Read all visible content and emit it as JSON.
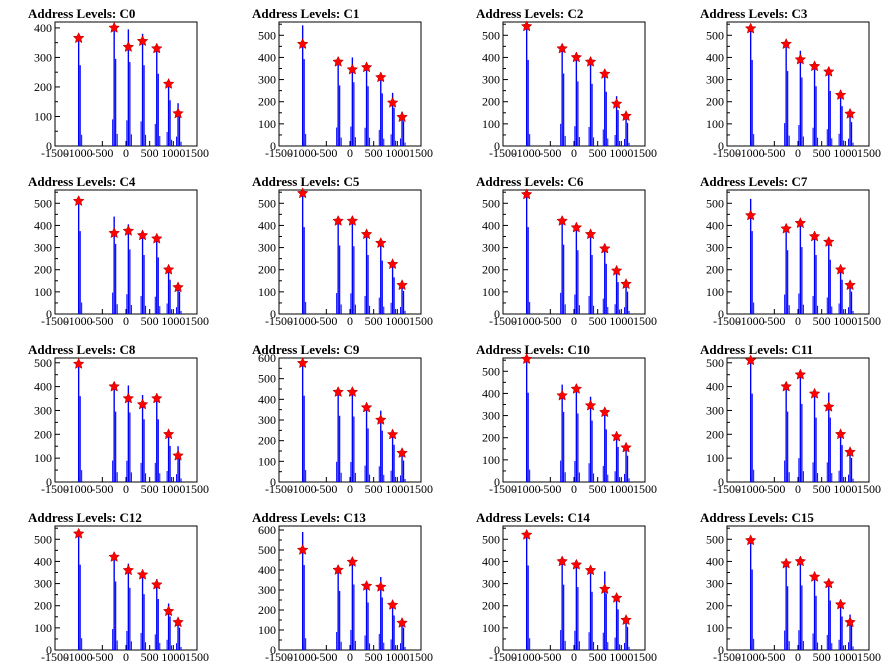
{
  "chart_data": [
    {
      "type": "bar",
      "title": "Address Levels: C0",
      "xlim": [
        -1500,
        1500
      ],
      "ylim": [
        0,
        420
      ],
      "yticks": [
        0,
        100,
        200,
        300,
        400
      ],
      "xticks": [
        -1500,
        -1000,
        -500,
        0,
        500,
        1000,
        1500
      ],
      "peaks": [
        {
          "x": -1000,
          "y": 380,
          "marker": 365
        },
        {
          "x": -250,
          "y": 410,
          "marker": 400
        },
        {
          "x": 50,
          "y": 395,
          "marker": 335
        },
        {
          "x": 350,
          "y": 380,
          "marker": 355
        },
        {
          "x": 650,
          "y": 340,
          "marker": 330
        },
        {
          "x": 900,
          "y": 215,
          "marker": 210
        },
        {
          "x": 1100,
          "y": 145,
          "marker": 110
        }
      ]
    },
    {
      "type": "bar",
      "title": "Address Levels: C1",
      "xlim": [
        -1500,
        1500
      ],
      "ylim": [
        0,
        560
      ],
      "yticks": [
        0,
        100,
        200,
        300,
        400,
        500
      ],
      "xticks": [
        -1500,
        -1000,
        -500,
        0,
        500,
        1000,
        1500
      ],
      "peaks": [
        {
          "x": -1000,
          "y": 545,
          "marker": 460
        },
        {
          "x": -250,
          "y": 380,
          "marker": 380
        },
        {
          "x": 50,
          "y": 400,
          "marker": 345
        },
        {
          "x": 350,
          "y": 375,
          "marker": 355
        },
        {
          "x": 650,
          "y": 330,
          "marker": 310
        },
        {
          "x": 900,
          "y": 240,
          "marker": 195
        },
        {
          "x": 1100,
          "y": 155,
          "marker": 130
        }
      ]
    },
    {
      "type": "bar",
      "title": "Address Levels: C2",
      "xlim": [
        -1500,
        1500
      ],
      "ylim": [
        0,
        560
      ],
      "yticks": [
        0,
        100,
        200,
        300,
        400,
        500
      ],
      "xticks": [
        -1500,
        -1000,
        -500,
        0,
        500,
        1000,
        1500
      ],
      "peaks": [
        {
          "x": -1000,
          "y": 540,
          "marker": 540
        },
        {
          "x": -250,
          "y": 455,
          "marker": 440
        },
        {
          "x": 50,
          "y": 405,
          "marker": 400
        },
        {
          "x": 350,
          "y": 390,
          "marker": 380
        },
        {
          "x": 650,
          "y": 340,
          "marker": 325
        },
        {
          "x": 900,
          "y": 225,
          "marker": 190
        },
        {
          "x": 1100,
          "y": 145,
          "marker": 135
        }
      ]
    },
    {
      "type": "bar",
      "title": "Address Levels: C3",
      "xlim": [
        -1500,
        1500
      ],
      "ylim": [
        0,
        560
      ],
      "yticks": [
        0,
        100,
        200,
        300,
        400,
        500
      ],
      "xticks": [
        -1500,
        -1000,
        -500,
        0,
        500,
        1000,
        1500
      ],
      "peaks": [
        {
          "x": -1000,
          "y": 540,
          "marker": 530
        },
        {
          "x": -250,
          "y": 470,
          "marker": 460
        },
        {
          "x": 50,
          "y": 430,
          "marker": 390
        },
        {
          "x": 350,
          "y": 375,
          "marker": 360
        },
        {
          "x": 650,
          "y": 345,
          "marker": 335
        },
        {
          "x": 900,
          "y": 250,
          "marker": 230
        },
        {
          "x": 1100,
          "y": 150,
          "marker": 145
        }
      ]
    },
    {
      "type": "bar",
      "title": "Address Levels: C4",
      "xlim": [
        -1500,
        1500
      ],
      "ylim": [
        0,
        560
      ],
      "yticks": [
        0,
        100,
        200,
        300,
        400,
        500
      ],
      "xticks": [
        -1500,
        -1000,
        -500,
        0,
        500,
        1000,
        1500
      ],
      "peaks": [
        {
          "x": -1000,
          "y": 520,
          "marker": 510
        },
        {
          "x": -250,
          "y": 440,
          "marker": 365
        },
        {
          "x": 50,
          "y": 405,
          "marker": 375
        },
        {
          "x": 350,
          "y": 370,
          "marker": 355
        },
        {
          "x": 650,
          "y": 355,
          "marker": 340
        },
        {
          "x": 900,
          "y": 215,
          "marker": 200
        },
        {
          "x": 1100,
          "y": 140,
          "marker": 120
        }
      ]
    },
    {
      "type": "bar",
      "title": "Address Levels: C5",
      "xlim": [
        -1500,
        1500
      ],
      "ylim": [
        0,
        560
      ],
      "yticks": [
        0,
        100,
        200,
        300,
        400,
        500
      ],
      "xticks": [
        -1500,
        -1000,
        -500,
        0,
        500,
        1000,
        1500
      ],
      "peaks": [
        {
          "x": -1000,
          "y": 545,
          "marker": 545
        },
        {
          "x": -250,
          "y": 430,
          "marker": 420
        },
        {
          "x": 50,
          "y": 425,
          "marker": 420
        },
        {
          "x": 350,
          "y": 370,
          "marker": 360
        },
        {
          "x": 650,
          "y": 335,
          "marker": 320
        },
        {
          "x": 900,
          "y": 230,
          "marker": 225
        },
        {
          "x": 1100,
          "y": 145,
          "marker": 130
        }
      ]
    },
    {
      "type": "bar",
      "title": "Address Levels: C6",
      "xlim": [
        -1500,
        1500
      ],
      "ylim": [
        0,
        560
      ],
      "yticks": [
        0,
        100,
        200,
        300,
        400,
        500
      ],
      "xticks": [
        -1500,
        -1000,
        -500,
        0,
        500,
        1000,
        1500
      ],
      "peaks": [
        {
          "x": -1000,
          "y": 545,
          "marker": 540
        },
        {
          "x": -250,
          "y": 435,
          "marker": 420
        },
        {
          "x": 50,
          "y": 400,
          "marker": 390
        },
        {
          "x": 350,
          "y": 370,
          "marker": 360
        },
        {
          "x": 650,
          "y": 315,
          "marker": 295
        },
        {
          "x": 900,
          "y": 200,
          "marker": 195
        },
        {
          "x": 1100,
          "y": 140,
          "marker": 135
        }
      ]
    },
    {
      "type": "bar",
      "title": "Address Levels: C7",
      "xlim": [
        -1500,
        1500
      ],
      "ylim": [
        0,
        560
      ],
      "yticks": [
        0,
        100,
        200,
        300,
        400,
        500
      ],
      "xticks": [
        -1500,
        -1000,
        -500,
        0,
        500,
        1000,
        1500
      ],
      "peaks": [
        {
          "x": -1000,
          "y": 520,
          "marker": 445
        },
        {
          "x": -250,
          "y": 400,
          "marker": 385
        },
        {
          "x": 50,
          "y": 420,
          "marker": 410
        },
        {
          "x": 350,
          "y": 370,
          "marker": 350
        },
        {
          "x": 650,
          "y": 340,
          "marker": 325
        },
        {
          "x": 900,
          "y": 215,
          "marker": 200
        },
        {
          "x": 1100,
          "y": 140,
          "marker": 130
        }
      ]
    },
    {
      "type": "bar",
      "title": "Address Levels: C8",
      "xlim": [
        -1500,
        1500
      ],
      "ylim": [
        0,
        520
      ],
      "yticks": [
        0,
        100,
        200,
        300,
        400,
        500
      ],
      "xticks": [
        -1500,
        -1000,
        -500,
        0,
        500,
        1000,
        1500
      ],
      "peaks": [
        {
          "x": -1000,
          "y": 500,
          "marker": 495
        },
        {
          "x": -250,
          "y": 410,
          "marker": 400
        },
        {
          "x": 50,
          "y": 405,
          "marker": 350
        },
        {
          "x": 350,
          "y": 365,
          "marker": 325
        },
        {
          "x": 650,
          "y": 365,
          "marker": 350
        },
        {
          "x": 900,
          "y": 210,
          "marker": 200
        },
        {
          "x": 1100,
          "y": 150,
          "marker": 110
        }
      ]
    },
    {
      "type": "bar",
      "title": "Address Levels: C9",
      "xlim": [
        -1500,
        1500
      ],
      "ylim": [
        0,
        600
      ],
      "yticks": [
        0,
        100,
        200,
        300,
        400,
        500,
        600
      ],
      "xticks": [
        -1500,
        -1000,
        -500,
        0,
        500,
        1000,
        1500
      ],
      "peaks": [
        {
          "x": -1000,
          "y": 580,
          "marker": 575
        },
        {
          "x": -250,
          "y": 445,
          "marker": 435
        },
        {
          "x": 50,
          "y": 440,
          "marker": 435
        },
        {
          "x": 350,
          "y": 360,
          "marker": 360
        },
        {
          "x": 650,
          "y": 345,
          "marker": 300
        },
        {
          "x": 900,
          "y": 250,
          "marker": 230
        },
        {
          "x": 1100,
          "y": 145,
          "marker": 140
        }
      ]
    },
    {
      "type": "bar",
      "title": "Address Levels: C10",
      "xlim": [
        -1500,
        1500
      ],
      "ylim": [
        0,
        560
      ],
      "yticks": [
        0,
        100,
        200,
        300,
        400,
        500
      ],
      "xticks": [
        -1500,
        -1000,
        -500,
        0,
        500,
        1000,
        1500
      ],
      "peaks": [
        {
          "x": -1000,
          "y": 560,
          "marker": 555
        },
        {
          "x": -250,
          "y": 440,
          "marker": 390
        },
        {
          "x": 50,
          "y": 430,
          "marker": 420
        },
        {
          "x": 350,
          "y": 385,
          "marker": 345
        },
        {
          "x": 650,
          "y": 330,
          "marker": 315
        },
        {
          "x": 900,
          "y": 220,
          "marker": 205
        },
        {
          "x": 1100,
          "y": 165,
          "marker": 155
        }
      ]
    },
    {
      "type": "bar",
      "title": "Address Levels: C11",
      "xlim": [
        -1500,
        1500
      ],
      "ylim": [
        0,
        520
      ],
      "yticks": [
        0,
        100,
        200,
        300,
        400,
        500
      ],
      "xticks": [
        -1500,
        -1000,
        -500,
        0,
        500,
        1000,
        1500
      ],
      "peaks": [
        {
          "x": -1000,
          "y": 515,
          "marker": 510
        },
        {
          "x": -250,
          "y": 410,
          "marker": 400
        },
        {
          "x": 50,
          "y": 455,
          "marker": 450
        },
        {
          "x": 350,
          "y": 375,
          "marker": 370
        },
        {
          "x": 650,
          "y": 375,
          "marker": 315
        },
        {
          "x": 900,
          "y": 215,
          "marker": 200
        },
        {
          "x": 1100,
          "y": 140,
          "marker": 125
        }
      ]
    },
    {
      "type": "bar",
      "title": "Address Levels: C12",
      "xlim": [
        -1500,
        1500
      ],
      "ylim": [
        0,
        560
      ],
      "yticks": [
        0,
        100,
        200,
        300,
        400,
        500
      ],
      "xticks": [
        -1500,
        -1000,
        -500,
        0,
        500,
        1000,
        1500
      ],
      "peaks": [
        {
          "x": -1000,
          "y": 535,
          "marker": 525
        },
        {
          "x": -250,
          "y": 430,
          "marker": 420
        },
        {
          "x": 50,
          "y": 390,
          "marker": 360
        },
        {
          "x": 350,
          "y": 350,
          "marker": 340
        },
        {
          "x": 650,
          "y": 320,
          "marker": 295
        },
        {
          "x": 900,
          "y": 210,
          "marker": 175
        },
        {
          "x": 1100,
          "y": 140,
          "marker": 125
        }
      ]
    },
    {
      "type": "bar",
      "title": "Address Levels: C13",
      "xlim": [
        -1500,
        1500
      ],
      "ylim": [
        0,
        620
      ],
      "yticks": [
        0,
        100,
        200,
        300,
        400,
        500,
        600
      ],
      "xticks": [
        -1500,
        -1000,
        -500,
        0,
        500,
        1000,
        1500
      ],
      "peaks": [
        {
          "x": -1000,
          "y": 590,
          "marker": 500
        },
        {
          "x": -250,
          "y": 410,
          "marker": 400
        },
        {
          "x": 50,
          "y": 455,
          "marker": 440
        },
        {
          "x": 350,
          "y": 330,
          "marker": 320
        },
        {
          "x": 650,
          "y": 365,
          "marker": 315
        },
        {
          "x": 900,
          "y": 240,
          "marker": 225
        },
        {
          "x": 1100,
          "y": 155,
          "marker": 135
        }
      ]
    },
    {
      "type": "bar",
      "title": "Address Levels: C14",
      "xlim": [
        -1500,
        1500
      ],
      "ylim": [
        0,
        560
      ],
      "yticks": [
        0,
        100,
        200,
        300,
        400,
        500
      ],
      "xticks": [
        -1500,
        -1000,
        -500,
        0,
        500,
        1000,
        1500
      ],
      "peaks": [
        {
          "x": -1000,
          "y": 530,
          "marker": 520
        },
        {
          "x": -250,
          "y": 410,
          "marker": 400
        },
        {
          "x": 50,
          "y": 395,
          "marker": 385
        },
        {
          "x": 350,
          "y": 365,
          "marker": 360
        },
        {
          "x": 650,
          "y": 355,
          "marker": 275
        },
        {
          "x": 900,
          "y": 255,
          "marker": 235
        },
        {
          "x": 1100,
          "y": 145,
          "marker": 135
        }
      ]
    },
    {
      "type": "bar",
      "title": "Address Levels: C15",
      "xlim": [
        -1500,
        1500
      ],
      "ylim": [
        0,
        560
      ],
      "yticks": [
        0,
        100,
        200,
        300,
        400,
        500
      ],
      "xticks": [
        -1500,
        -1000,
        -500,
        0,
        500,
        1000,
        1500
      ],
      "peaks": [
        {
          "x": -1000,
          "y": 505,
          "marker": 495
        },
        {
          "x": -250,
          "y": 400,
          "marker": 390
        },
        {
          "x": 50,
          "y": 405,
          "marker": 400
        },
        {
          "x": 350,
          "y": 340,
          "marker": 330
        },
        {
          "x": 650,
          "y": 310,
          "marker": 300
        },
        {
          "x": 900,
          "y": 210,
          "marker": 205
        },
        {
          "x": 1100,
          "y": 160,
          "marker": 125
        }
      ]
    }
  ],
  "colors": {
    "bar": "#0000ff",
    "marker": "#ff0000",
    "axis": "#000000"
  }
}
